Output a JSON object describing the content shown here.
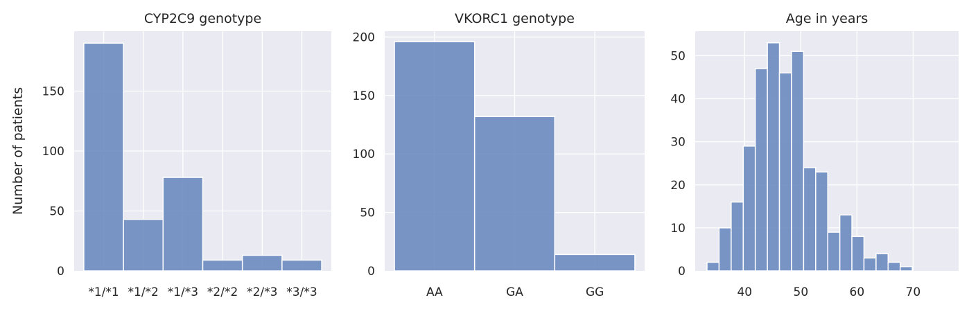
{
  "chart_data": [
    {
      "type": "bar",
      "title": "CYP2C9 genotype",
      "ylabel": "Number of patients",
      "xlabel": "",
      "categories": [
        "*1/*1",
        "*1/*2",
        "*1/*3",
        "*2/*2",
        "*2/*3",
        "*3/*3"
      ],
      "values": [
        190,
        43,
        78,
        9,
        13,
        9
      ],
      "ylim": [
        0,
        200
      ],
      "yticks": [
        0,
        50,
        100,
        150
      ],
      "color": "#6b8bbf",
      "grid": true
    },
    {
      "type": "bar",
      "title": "VKORC1 genotype",
      "ylabel": "",
      "xlabel": "",
      "categories": [
        "AA",
        "GA",
        "GG"
      ],
      "values": [
        196,
        132,
        14
      ],
      "ylim": [
        0,
        205
      ],
      "yticks": [
        0,
        50,
        100,
        150,
        200
      ],
      "color": "#6b8bbf",
      "grid": true
    },
    {
      "type": "histogram",
      "title": "Age in years",
      "ylabel": "",
      "xlabel": "",
      "bin_edges": [
        33.3,
        35.45,
        37.6,
        39.75,
        41.9,
        44.05,
        46.2,
        48.35,
        50.5,
        52.65,
        54.8,
        56.95,
        59.1,
        61.25,
        63.4,
        65.55,
        67.7,
        69.85,
        72.0,
        74.15,
        76.3
      ],
      "values": [
        2,
        10,
        16,
        29,
        47,
        53,
        46,
        51,
        24,
        23,
        9,
        13,
        8,
        3,
        4,
        2,
        1,
        0,
        0,
        0
      ],
      "xlim": [
        31.2,
        78.1
      ],
      "ylim": [
        0,
        55.7
      ],
      "xticks": [
        40,
        50,
        60,
        70
      ],
      "yticks": [
        0,
        10,
        20,
        30,
        40,
        50
      ],
      "color": "#6b8bbf",
      "grid": true
    }
  ]
}
